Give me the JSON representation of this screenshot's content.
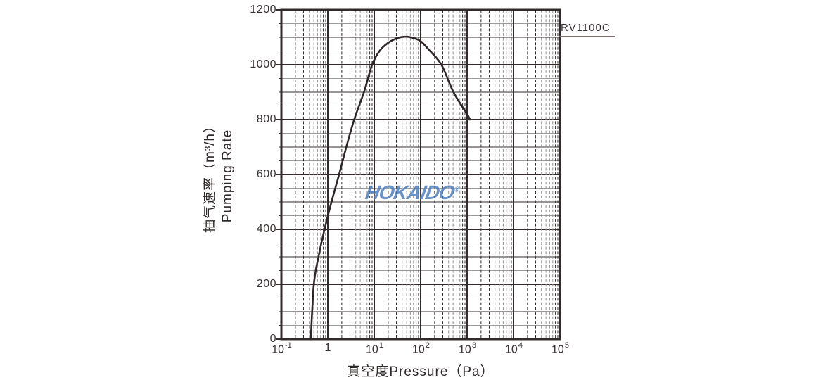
{
  "series_label": "RV1100C",
  "watermark": {
    "text": "HOKAIDO",
    "reg": "®",
    "color": "#4b7cbe"
  },
  "axes": {
    "x": {
      "title": "真空度Pressure（Pa）",
      "scale": "log",
      "min_exp": -1,
      "max_exp": 5,
      "ticks": [
        {
          "base": "10",
          "exp": "-1"
        },
        {
          "base": "1",
          "exp": ""
        },
        {
          "base": "10",
          "exp": "1"
        },
        {
          "base": "10",
          "exp": "2"
        },
        {
          "base": "10",
          "exp": "3"
        },
        {
          "base": "10",
          "exp": "4"
        },
        {
          "base": "10",
          "exp": "5"
        }
      ]
    },
    "y": {
      "title_line1": "抽气速率（m³/h）",
      "title_line2": "Pumping Rate",
      "min": 0,
      "max": 1200,
      "major_step": 200,
      "minor_step": 50,
      "tick_labels": [
        "0",
        "200",
        "400",
        "600",
        "800",
        "1000",
        "1200"
      ]
    }
  },
  "chart_data": {
    "type": "line",
    "title": "",
    "xlabel": "真空度Pressure（Pa）",
    "ylabel": "抽气速率（m³/h）Pumping Rate",
    "x_scale": "log",
    "xlim": [
      0.1,
      100000
    ],
    "ylim": [
      0,
      1200
    ],
    "grid": "major solid, log-minor dashed vertical, 50-step horizontal",
    "legend_position": "top-right-outside",
    "series": [
      {
        "name": "RV1100C",
        "points_pa_m3h": [
          [
            0.43,
            0
          ],
          [
            0.5,
            200
          ],
          [
            0.63,
            300
          ],
          [
            0.85,
            400
          ],
          [
            1.2,
            500
          ],
          [
            1.75,
            600
          ],
          [
            2.5,
            700
          ],
          [
            3.7,
            800
          ],
          [
            6,
            900
          ],
          [
            9,
            1000
          ],
          [
            13,
            1050
          ],
          [
            20,
            1080
          ],
          [
            33,
            1098
          ],
          [
            50,
            1102
          ],
          [
            70,
            1097
          ],
          [
            100,
            1086
          ],
          [
            150,
            1055
          ],
          [
            280,
            1000
          ],
          [
            510,
            900
          ],
          [
            1000,
            820
          ],
          [
            1150,
            800
          ]
        ]
      }
    ]
  },
  "colors": {
    "line_dark": "#332b2b",
    "line_gray": "#9b9b9b",
    "minor_gray": "#8f8f8f",
    "curve": "#2e2626",
    "text": "#3a3232",
    "watermark_blue": "#4b7cbe"
  }
}
